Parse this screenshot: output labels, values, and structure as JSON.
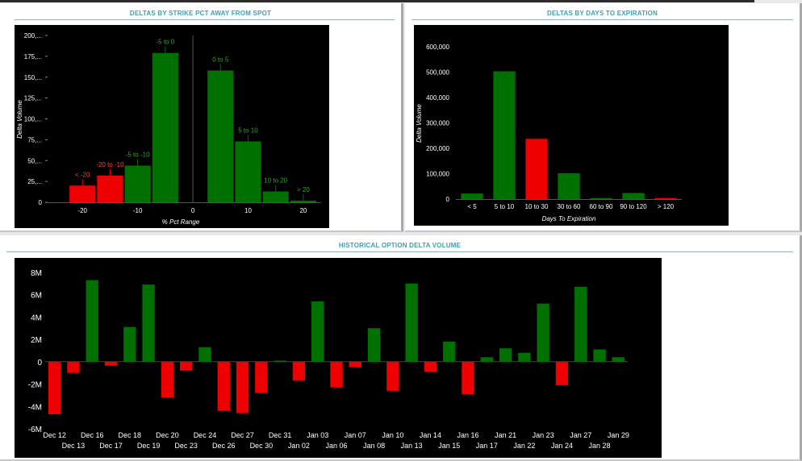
{
  "panels": {
    "strike": {
      "title": "DELTAS BY STRIKE PCT AWAY FROM SPOT"
    },
    "days": {
      "title": "DELTAS BY DAYS TO EXPIRATION"
    },
    "historical": {
      "title": "HISTORICAL OPTION DELTA VOLUME"
    }
  },
  "colors": {
    "positive": "#007000",
    "negative": "#ee0000",
    "background": "#000000",
    "text": "#ffffff",
    "title": "#3aa0b5"
  },
  "chart_data": [
    {
      "id": "strike",
      "type": "bar",
      "xlabel": "% Pct Range",
      "ylabel": "Delta Volume",
      "ylim": [
        0,
        200
      ],
      "xlim": [
        -25,
        22.5
      ],
      "xticks": [
        -20,
        -10,
        0,
        10,
        20
      ],
      "yticks": [
        0,
        25,
        50,
        75,
        100,
        125,
        150,
        175,
        200
      ],
      "ytick_labels": [
        "0",
        "25,...",
        "50,...",
        "75,...",
        "100,...",
        "125,...",
        "150,...",
        "175,...",
        "200,..."
      ],
      "zero_line": 0,
      "bars": [
        {
          "label": "< -20",
          "x": -20,
          "value": 20,
          "color": "negative"
        },
        {
          "label": "-20 to -10",
          "x": -15,
          "value": 32,
          "color": "negative"
        },
        {
          "label": "-5 to -10",
          "x": -10,
          "value": 44,
          "color": "positive"
        },
        {
          "label": "-5 to 0",
          "x": -5,
          "value": 179,
          "color": "positive"
        },
        {
          "label": "0 to 5",
          "x": 5,
          "value": 158,
          "color": "positive"
        },
        {
          "label": "5 to 10",
          "x": 10,
          "value": 73,
          "color": "positive"
        },
        {
          "label": "10 to 20",
          "x": 15,
          "value": 13,
          "color": "positive"
        },
        {
          "label": "> 20",
          "x": 20,
          "value": 2,
          "color": "positive"
        }
      ]
    },
    {
      "id": "days",
      "type": "bar",
      "xlabel": "Days To Expiration",
      "ylabel": "Delta Volume",
      "ylim": [
        0,
        660000
      ],
      "yticks": [
        0,
        100000,
        200000,
        300000,
        400000,
        500000,
        600000
      ],
      "ytick_labels": [
        "0",
        "100,000",
        "200,000",
        "300,000",
        "400,000",
        "500,000",
        "600,000"
      ],
      "categories": [
        "< 5",
        "5 to 10",
        "10 to 30",
        "30 to 60",
        "60 to 90",
        "90 to 120",
        "> 120"
      ],
      "values": [
        22000,
        503000,
        237000,
        102000,
        4000,
        24000,
        4000
      ],
      "bar_colors": [
        "positive",
        "positive",
        "negative",
        "positive",
        "positive",
        "positive",
        "negative"
      ]
    },
    {
      "id": "historical",
      "type": "bar",
      "ylim": [
        -6,
        9
      ],
      "yticks": [
        -6,
        -4,
        -2,
        0,
        2,
        4,
        6,
        8
      ],
      "ytick_labels": [
        "-6M",
        "-4M",
        "-2M",
        "0",
        "2M",
        "4M",
        "6M",
        "8M"
      ],
      "units": "M",
      "categories": [
        "Dec 12",
        "Dec 13",
        "Dec 16",
        "Dec 17",
        "Dec 18",
        "Dec 19",
        "Dec 20",
        "Dec 23",
        "Dec 24",
        "Dec 26",
        "Dec 27",
        "Dec 30",
        "Dec 31",
        "Jan 02",
        "Jan 03",
        "Jan 06",
        "Jan 07",
        "Jan 08",
        "Jan 10",
        "Jan 13",
        "Jan 14",
        "Jan 15",
        "Jan 16",
        "Jan 17",
        "Jan 21",
        "Jan 22",
        "Jan 23",
        "Jan 24",
        "Jan 27",
        "Jan 28",
        "Jan 29"
      ],
      "values": [
        -4.7,
        -1.0,
        7.3,
        -0.35,
        3.1,
        6.9,
        -3.2,
        -0.8,
        1.3,
        -4.4,
        -4.6,
        -2.8,
        0.1,
        -1.7,
        5.4,
        -2.3,
        -0.5,
        3.0,
        -2.6,
        7.0,
        -0.9,
        1.8,
        -2.9,
        0.4,
        1.2,
        0.8,
        5.2,
        -2.1,
        6.7,
        1.1,
        0.4
      ]
    }
  ]
}
